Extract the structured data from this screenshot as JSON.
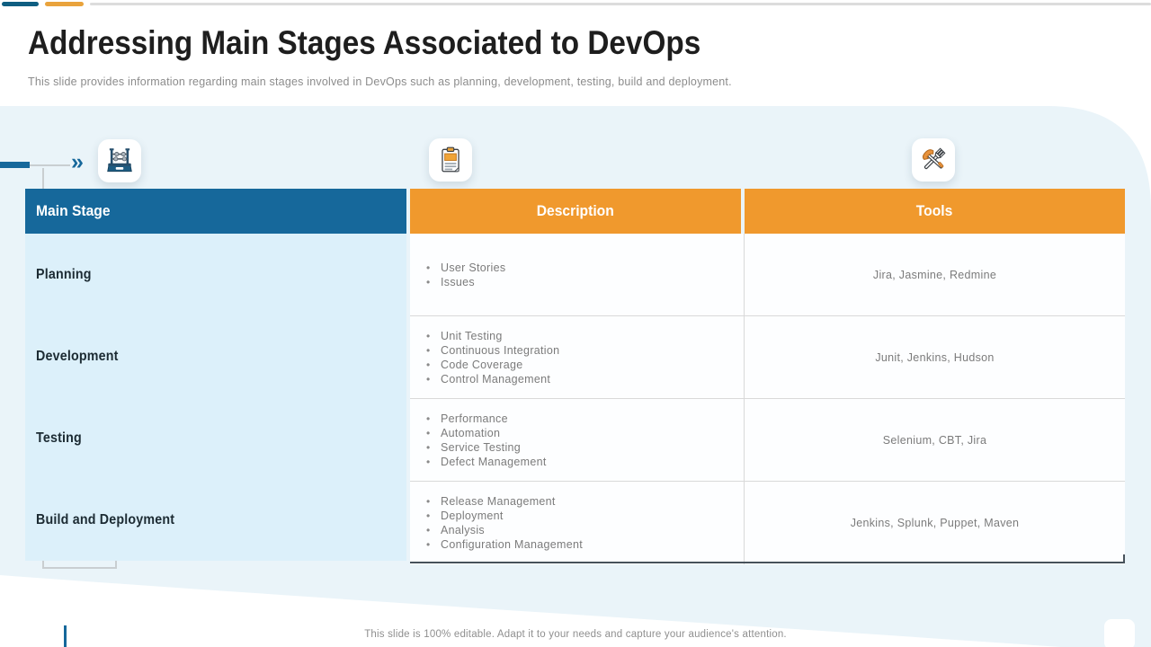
{
  "slide": {
    "title": "Addressing Main Stages Associated to DevOps",
    "subtitle": "This slide provides information regarding main stages involved in DevOps such as planning, development, testing, build and deployment.",
    "footer": "This slide is 100% editable. Adapt it to your needs and capture your audience's attention.",
    "chevron_glyph": "»"
  },
  "colors": {
    "teal": "#16689B",
    "dark_teal_bar": "#0F5E81",
    "orange": "#F0992D",
    "orange_bar": "#E9A33C",
    "canvas_blue": "#EAF4F9",
    "stage_column_bg": "#DCF0FA",
    "title_text": "#1E1E1E",
    "muted_text": "#7B7B7B"
  },
  "icons": [
    {
      "name": "abacus-icon"
    },
    {
      "name": "clipboard-icon"
    },
    {
      "name": "hammer-wrench-icon"
    }
  ],
  "table": {
    "headers": [
      {
        "label": "Main Stage"
      },
      {
        "label": "Description"
      },
      {
        "label": "Tools"
      }
    ],
    "rows": [
      {
        "stage": "Planning",
        "description": [
          "User Stories",
          "Issues"
        ],
        "tools": "Jira, Jasmine, Redmine"
      },
      {
        "stage": "Development",
        "description": [
          "Unit Testing",
          "Continuous Integration",
          "Code Coverage",
          "Control Management"
        ],
        "tools": "Junit, Jenkins, Hudson"
      },
      {
        "stage": "Testing",
        "description": [
          "Performance",
          "Automation",
          "Service Testing",
          "Defect Management"
        ],
        "tools": "Selenium, CBT, Jira"
      },
      {
        "stage": "Build and Deployment",
        "description": [
          "Release Management",
          "Deployment",
          "Analysis",
          "Configuration Management"
        ],
        "tools": "Jenkins, Splunk, Puppet, Maven"
      }
    ]
  }
}
